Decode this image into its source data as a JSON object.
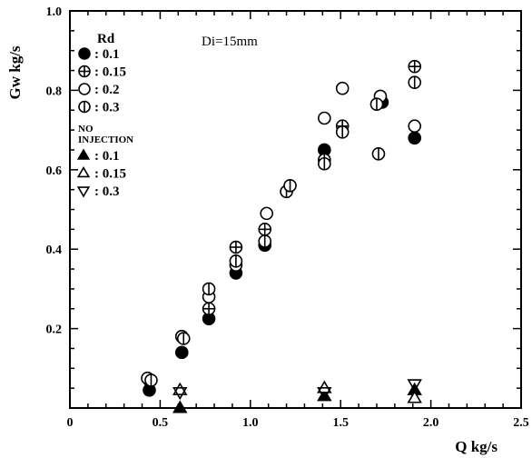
{
  "chart_data": {
    "type": "scatter",
    "title": "",
    "xlabel": "Q  kg/s",
    "ylabel": "Gw  kg/s",
    "annotation": "Di=15mm",
    "xlim": [
      0,
      2.5
    ],
    "ylim": [
      0,
      1.0
    ],
    "x_ticks": [
      "0",
      "0.5",
      "1.0",
      "1.5",
      "2.0",
      "2.5"
    ],
    "y_ticks": [
      "0.2",
      "0.4",
      "0.6",
      "0.8",
      "1.0"
    ],
    "legend_title": "Rd",
    "legend_group2_title": [
      "NO",
      "INJECTION"
    ],
    "legend_placement": "top-left",
    "series": [
      {
        "name": ": 0.1",
        "marker": "filled-circle",
        "points": [
          [
            0.44,
            0.045
          ],
          [
            0.62,
            0.14
          ],
          [
            0.77,
            0.225
          ],
          [
            0.92,
            0.34
          ],
          [
            1.08,
            0.41
          ],
          [
            1.41,
            0.65
          ],
          [
            1.73,
            0.77
          ],
          [
            1.91,
            0.68
          ]
        ]
      },
      {
        "name": ": 0.15",
        "marker": "circle-plus",
        "points": [
          [
            0.44,
            0.07
          ],
          [
            0.62,
            0.18
          ],
          [
            0.77,
            0.25
          ],
          [
            0.92,
            0.405
          ],
          [
            1.08,
            0.45
          ],
          [
            1.41,
            0.625
          ],
          [
            1.51,
            0.71
          ],
          [
            1.91,
            0.86
          ]
        ]
      },
      {
        "name": ": 0.2",
        "marker": "open-circle",
        "points": [
          [
            0.43,
            0.075
          ],
          [
            0.62,
            0.18
          ],
          [
            0.77,
            0.28
          ],
          [
            0.92,
            0.36
          ],
          [
            1.09,
            0.49
          ],
          [
            1.41,
            0.73
          ],
          [
            1.51,
            0.805
          ],
          [
            1.72,
            0.785
          ],
          [
            1.91,
            0.71
          ]
        ]
      },
      {
        "name": ": 0.3",
        "marker": "circle-vline",
        "points": [
          [
            0.45,
            0.07
          ],
          [
            0.63,
            0.175
          ],
          [
            0.77,
            0.3
          ],
          [
            0.92,
            0.37
          ],
          [
            1.08,
            0.42
          ],
          [
            1.2,
            0.545
          ],
          [
            1.22,
            0.56
          ],
          [
            1.41,
            0.615
          ],
          [
            1.51,
            0.695
          ],
          [
            1.7,
            0.765
          ],
          [
            1.71,
            0.64
          ],
          [
            1.91,
            0.82
          ]
        ]
      },
      {
        "name": ": 0.1",
        "marker": "filled-triangle-up",
        "group": "no-injection",
        "points": [
          [
            0.61,
            0.0
          ],
          [
            1.41,
            0.03
          ],
          [
            1.91,
            0.045
          ]
        ]
      },
      {
        "name": ": 0.15",
        "marker": "open-triangle-up",
        "group": "no-injection",
        "points": [
          [
            0.61,
            0.045
          ],
          [
            1.41,
            0.05
          ],
          [
            1.91,
            0.025
          ]
        ]
      },
      {
        "name": ": 0.3",
        "marker": "open-triangle-down",
        "group": "no-injection",
        "points": [
          [
            0.61,
            0.04
          ],
          [
            1.41,
            0.04
          ],
          [
            1.91,
            0.06
          ]
        ]
      }
    ]
  }
}
